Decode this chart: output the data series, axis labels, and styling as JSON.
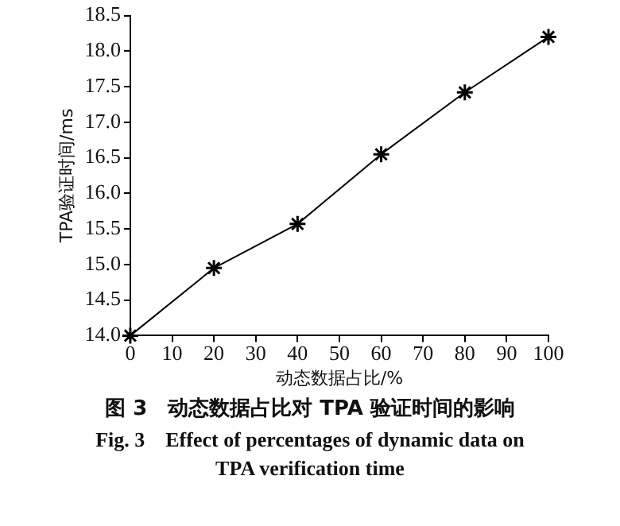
{
  "chart_data": {
    "type": "line",
    "title": "图 3　动态数据占比对 TPA 验证时间的影响",
    "subtitle": "Fig. 3　Effect of percentages of dynamic data on TPA verification time",
    "xlabel": "动态数据占比/%",
    "ylabel": "TPA验证时间/ms",
    "x": [
      0,
      20,
      40,
      60,
      80,
      100
    ],
    "series": [
      {
        "color": "#000000",
        "values": [
          14.0,
          14.95,
          15.57,
          16.55,
          17.42,
          18.2
        ]
      }
    ],
    "xlim": [
      0,
      100
    ],
    "xticks": [
      0,
      10,
      20,
      30,
      40,
      50,
      60,
      70,
      80,
      90,
      100
    ],
    "ylim": [
      14.0,
      18.5
    ],
    "yticks": [
      {
        "value": 14.0,
        "label": "14.0"
      },
      {
        "value": 14.5,
        "label": "14.5"
      },
      {
        "value": 15.0,
        "label": "15.0"
      },
      {
        "value": 15.5,
        "label": "15.5"
      },
      {
        "value": 16.0,
        "label": "16.0"
      },
      {
        "value": 16.5,
        "label": "16.5"
      },
      {
        "value": 17.0,
        "label": "17.0"
      },
      {
        "value": 17.5,
        "label": "17.5"
      },
      {
        "value": 18.0,
        "label": "18.0"
      },
      {
        "value": 18.5,
        "label": "18.5"
      }
    ],
    "grid": false,
    "legend": false,
    "marker": "cross",
    "line_style": "solid"
  }
}
